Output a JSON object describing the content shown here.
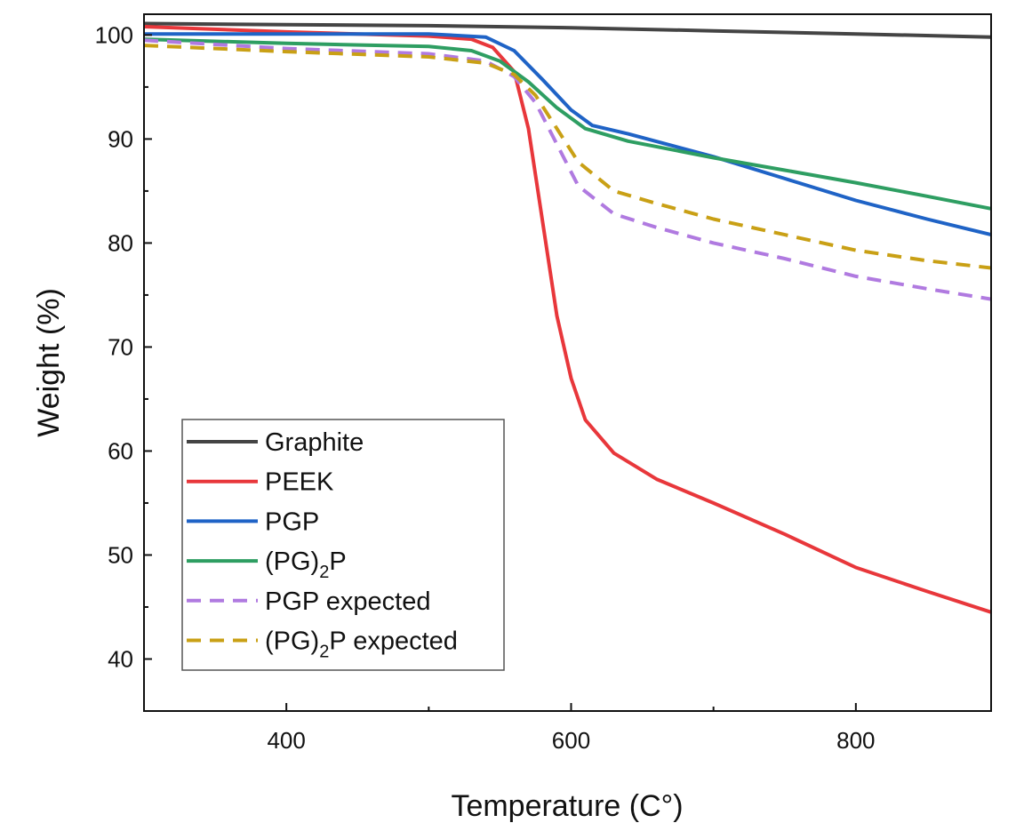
{
  "chart_data": {
    "type": "line",
    "title": "",
    "xlabel": "Temperature (C°)",
    "ylabel": "Weight (%)",
    "xlim": [
      300,
      895
    ],
    "ylim": [
      35,
      102
    ],
    "x_ticks": [
      400,
      600,
      800
    ],
    "x_minor_ticks": [
      500,
      700
    ],
    "y_ticks": [
      40,
      50,
      60,
      70,
      80,
      90,
      100
    ],
    "grid": false,
    "legend_position": "bottom-left",
    "series": [
      {
        "name": "Graphite",
        "color": "#444444",
        "style": "solid",
        "x": [
          300,
          400,
          500,
          600,
          700,
          800,
          895
        ],
        "y": [
          101.1,
          101.0,
          100.9,
          100.7,
          100.4,
          100.1,
          99.8
        ]
      },
      {
        "name": "PEEK",
        "color": "#e8373b",
        "style": "solid",
        "x": [
          300,
          400,
          500,
          530,
          545,
          560,
          570,
          580,
          590,
          600,
          610,
          630,
          660,
          700,
          750,
          800,
          850,
          895
        ],
        "y": [
          100.8,
          100.3,
          99.9,
          99.6,
          98.8,
          96.5,
          91.0,
          82.0,
          73.0,
          67.0,
          63.0,
          59.8,
          57.3,
          55.0,
          52.0,
          48.8,
          46.5,
          44.5
        ]
      },
      {
        "name": "PGP",
        "color": "#1f63c6",
        "style": "solid",
        "x": [
          300,
          400,
          500,
          540,
          560,
          580,
          600,
          615,
          640,
          700,
          750,
          800,
          850,
          895
        ],
        "y": [
          100.1,
          100.1,
          100.1,
          99.8,
          98.5,
          95.7,
          92.8,
          91.3,
          90.5,
          88.3,
          86.2,
          84.1,
          82.3,
          80.8
        ]
      },
      {
        "name": "(PG)₂P",
        "color": "#2e9e62",
        "style": "solid",
        "x": [
          300,
          400,
          500,
          530,
          550,
          570,
          590,
          610,
          640,
          700,
          750,
          800,
          850,
          895
        ],
        "y": [
          99.6,
          99.2,
          98.9,
          98.5,
          97.5,
          95.5,
          93.0,
          91.0,
          89.8,
          88.2,
          87.0,
          85.8,
          84.5,
          83.3
        ]
      },
      {
        "name": "PGP expected",
        "color": "#b07ae0",
        "style": "dashed",
        "x": [
          300,
          400,
          500,
          540,
          560,
          575,
          590,
          605,
          630,
          660,
          700,
          750,
          800,
          850,
          895
        ],
        "y": [
          99.5,
          98.7,
          98.2,
          97.5,
          96.0,
          93.5,
          89.5,
          85.5,
          82.8,
          81.5,
          80.0,
          78.5,
          76.8,
          75.6,
          74.6
        ]
      },
      {
        "name": "(PG)₂P expected",
        "color": "#c9a015",
        "style": "dashed",
        "x": [
          300,
          400,
          500,
          540,
          560,
          575,
          590,
          605,
          630,
          660,
          700,
          750,
          800,
          850,
          895
        ],
        "y": [
          99.0,
          98.4,
          97.9,
          97.3,
          96.2,
          94.2,
          91.0,
          87.8,
          85.0,
          83.8,
          82.3,
          80.8,
          79.3,
          78.3,
          77.6
        ]
      }
    ],
    "legend": {
      "items": [
        {
          "label": "Graphite",
          "color": "#444444",
          "style": "solid"
        },
        {
          "label": "PEEK",
          "color": "#e8373b",
          "style": "solid"
        },
        {
          "label": "PGP",
          "color": "#1f63c6",
          "style": "solid"
        },
        {
          "label_main": "(PG)",
          "label_sub": "2",
          "label_tail": "P",
          "color": "#2e9e62",
          "style": "solid"
        },
        {
          "label": "PGP expected",
          "color": "#b07ae0",
          "style": "dashed"
        },
        {
          "label_main": "(PG)",
          "label_sub": "2",
          "label_tail": "P expected",
          "color": "#c9a015",
          "style": "dashed"
        }
      ]
    }
  }
}
